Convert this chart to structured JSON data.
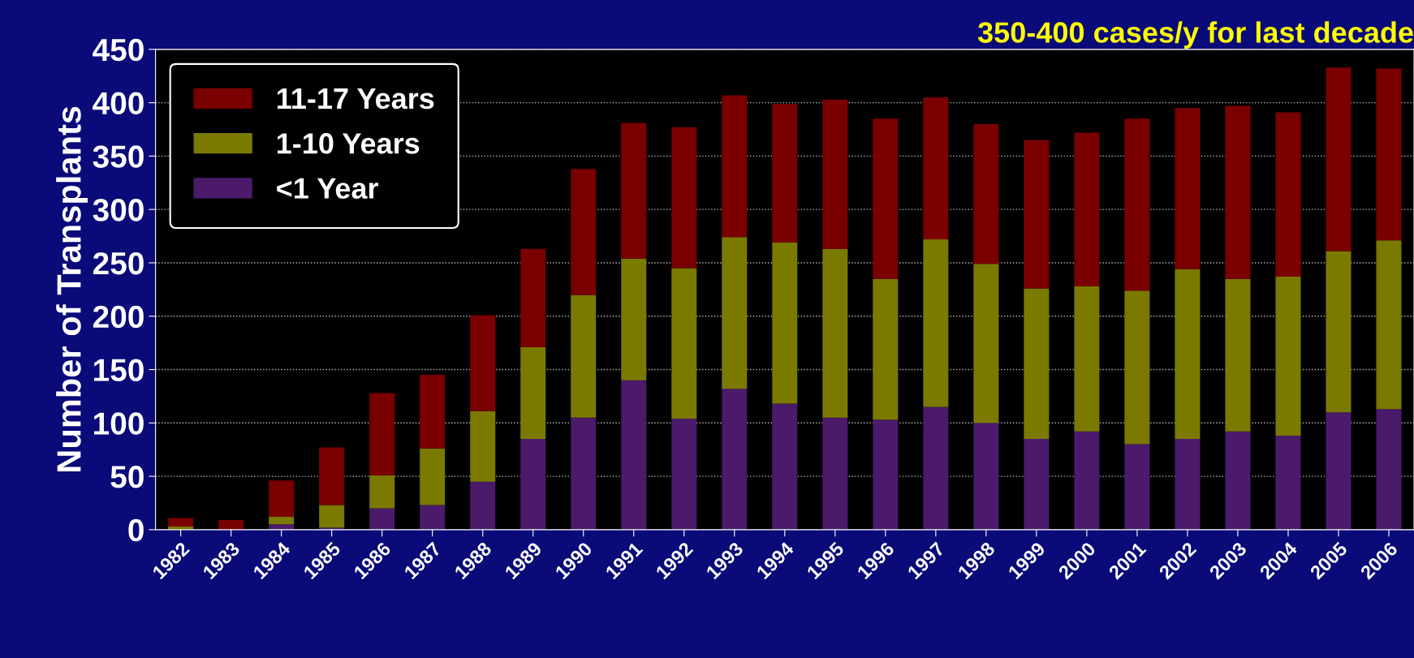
{
  "chart_data": {
    "type": "bar",
    "title": "350-400 cases/y for last decade",
    "ylabel": "Number of Transplants",
    "stacked": true,
    "categories": [
      "1982",
      "1983",
      "1984",
      "1985",
      "1986",
      "1987",
      "1988",
      "1989",
      "1990",
      "1991",
      "1992",
      "1993",
      "1994",
      "1995",
      "1996",
      "1997",
      "1998",
      "1999",
      "2000",
      "2001",
      "2002",
      "2003",
      "2004",
      "2005",
      "2006"
    ],
    "series": [
      {
        "name": "<1 Year",
        "color": "#4b1a6b",
        "values": [
          0,
          0,
          5,
          2,
          20,
          23,
          45,
          85,
          105,
          140,
          104,
          132,
          118,
          105,
          103,
          115,
          100,
          85,
          92,
          80,
          85,
          92,
          88,
          110,
          113
        ]
      },
      {
        "name": "1-10 Years",
        "color": "#7a7a00",
        "values": [
          3,
          null,
          7,
          21,
          31,
          53,
          66,
          86,
          115,
          114,
          141,
          142,
          151,
          158,
          132,
          157,
          149,
          141,
          136,
          144,
          159,
          143,
          149,
          151,
          158
        ]
      },
      {
        "name": "11-17 Years",
        "color": "#7a0000",
        "values": [
          8,
          9,
          34,
          54,
          77,
          69,
          90,
          92,
          118,
          127,
          132,
          133,
          130,
          140,
          150,
          133,
          131,
          139,
          144,
          161,
          151,
          162,
          154,
          172,
          161
        ]
      }
    ],
    "ylim": [
      0,
      450
    ],
    "yticks": [
      0,
      50,
      100,
      150,
      200,
      250,
      300,
      350,
      400,
      450
    ],
    "grid": "y",
    "legend": "top left"
  }
}
